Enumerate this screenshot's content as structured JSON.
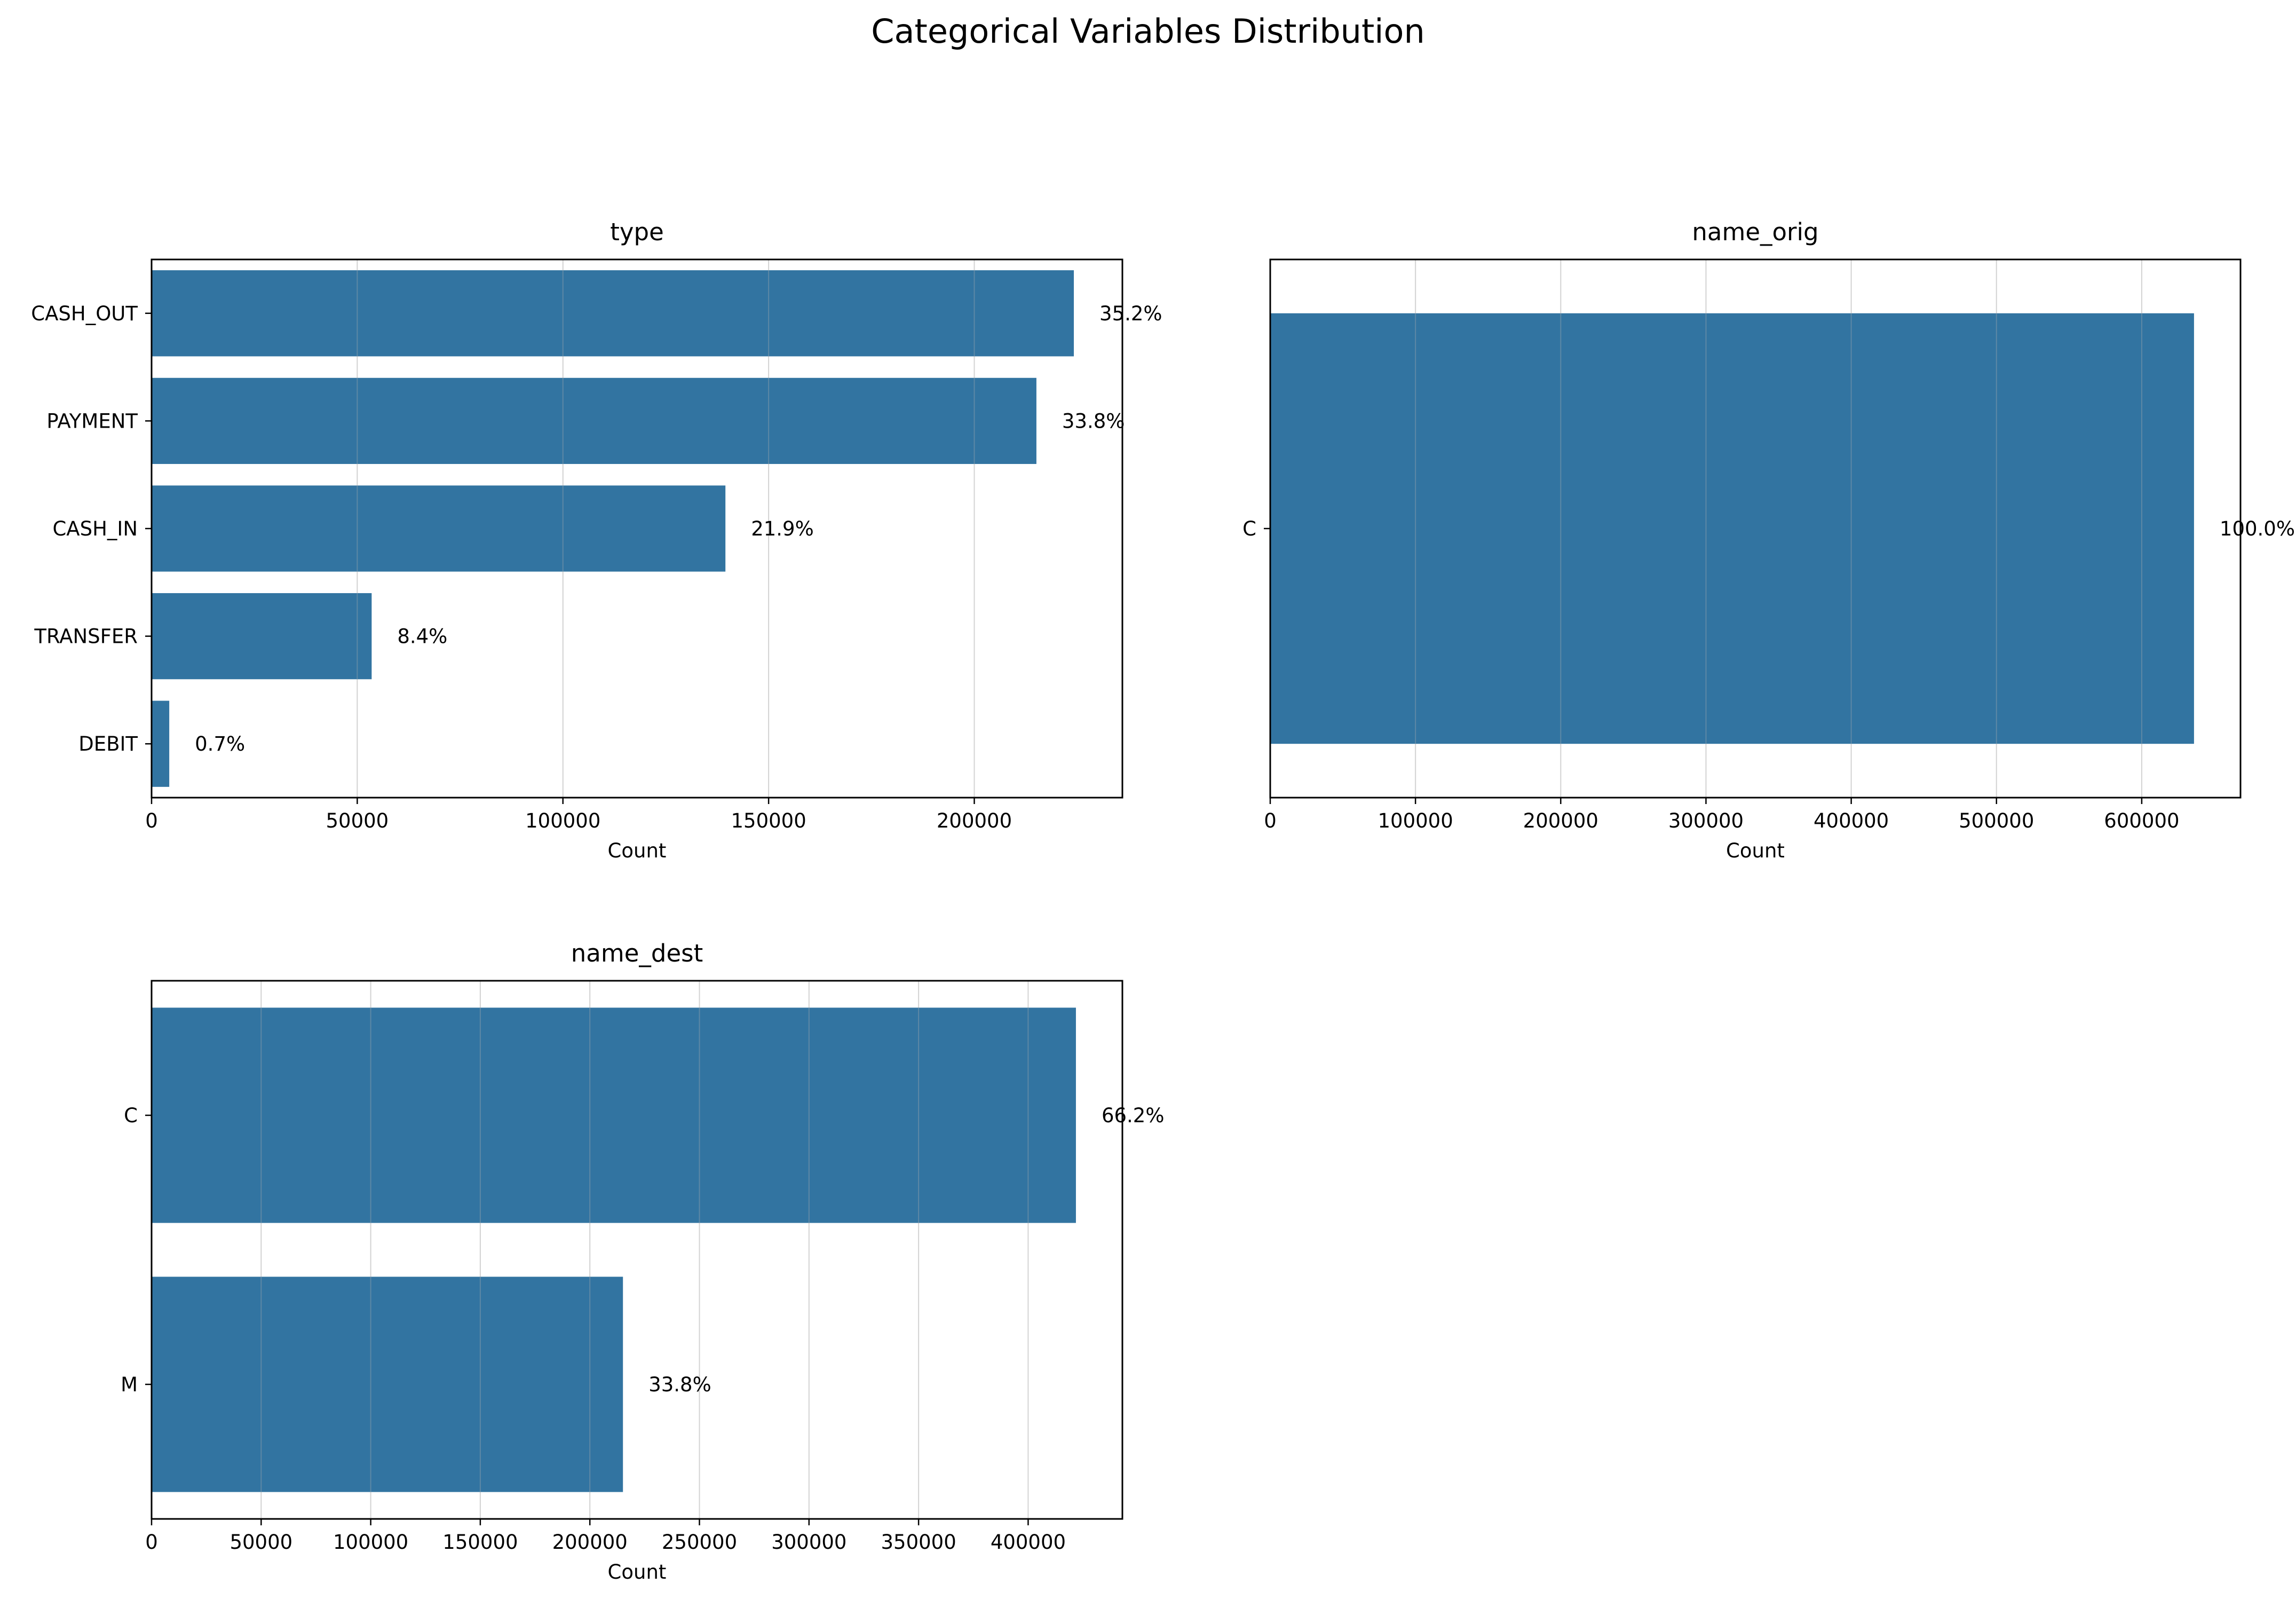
{
  "figure": {
    "title": "Categorical Variables Distribution"
  },
  "chart_data": [
    {
      "type": "bar",
      "orientation": "horizontal",
      "title": "type",
      "xlabel": "Count",
      "ylabel": "",
      "categories": [
        "CASH_OUT",
        "PAYMENT",
        "CASH_IN",
        "TRANSFER",
        "DEBIT"
      ],
      "values": [
        224200,
        215100,
        139500,
        53500,
        4300
      ],
      "data_labels": [
        "35.2%",
        "33.8%",
        "21.9%",
        "8.4%",
        "0.7%"
      ],
      "xlim": [
        0,
        236000
      ],
      "xticks": [
        0,
        50000,
        100000,
        150000,
        200000
      ],
      "xtick_labels": [
        "0",
        "50000",
        "100000",
        "150000",
        "200000"
      ],
      "grid": "x",
      "color": "#3274a1"
    },
    {
      "type": "bar",
      "orientation": "horizontal",
      "title": "name_orig",
      "xlabel": "Count",
      "ylabel": "",
      "categories": [
        "C"
      ],
      "values": [
        636000
      ],
      "data_labels": [
        "100.0%"
      ],
      "xlim": [
        0,
        668000
      ],
      "xticks": [
        0,
        100000,
        200000,
        300000,
        400000,
        500000,
        600000
      ],
      "xtick_labels": [
        "0",
        "100000",
        "200000",
        "300000",
        "400000",
        "500000",
        "600000"
      ],
      "grid": "x",
      "color": "#3274a1"
    },
    {
      "type": "bar",
      "orientation": "horizontal",
      "title": "name_dest",
      "xlabel": "Count",
      "ylabel": "",
      "categories": [
        "C",
        "M"
      ],
      "values": [
        421800,
        215100
      ],
      "data_labels": [
        "66.2%",
        "33.8%"
      ],
      "xlim": [
        0,
        443000
      ],
      "xticks": [
        0,
        50000,
        100000,
        150000,
        200000,
        250000,
        300000,
        350000,
        400000
      ],
      "xtick_labels": [
        "0",
        "50000",
        "100000",
        "150000",
        "200000",
        "250000",
        "300000",
        "350000",
        "400000"
      ],
      "grid": "x",
      "color": "#3274a1"
    }
  ]
}
